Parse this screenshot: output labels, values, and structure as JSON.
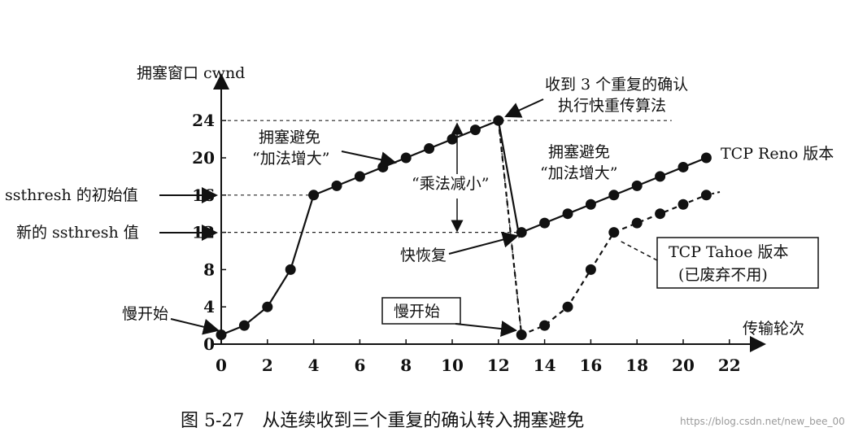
{
  "chart_data": {
    "type": "line",
    "ylabel": "拥塞窗口 cwnd",
    "xlabel": "传输轮次",
    "x_ticks": [
      0,
      2,
      4,
      6,
      8,
      10,
      12,
      14,
      16,
      18,
      20,
      22
    ],
    "y_ticks": [
      0,
      4,
      8,
      12,
      16,
      20,
      24
    ],
    "xlim": [
      0,
      22
    ],
    "ylim": [
      0,
      24
    ],
    "grid": false,
    "series": [
      {
        "name": "TCP Reno 版本",
        "style": "solid",
        "x": [
          0,
          1,
          2,
          3,
          4,
          5,
          6,
          7,
          8,
          9,
          10,
          11,
          12,
          12.9,
          13,
          14,
          15,
          16,
          17,
          18,
          19,
          20,
          21
        ],
        "y": [
          1,
          2,
          4,
          8,
          16,
          17,
          18,
          19,
          20,
          21,
          22,
          23,
          24,
          11.6,
          12,
          13,
          14,
          15,
          16,
          17,
          18,
          19,
          20
        ]
      },
      {
        "name": "TCP Tahoe 版本",
        "style": "dashed",
        "x": [
          12,
          13,
          14,
          15,
          16,
          17,
          18,
          19,
          20,
          21
        ],
        "y": [
          24,
          1,
          2,
          4,
          8,
          12,
          13,
          14,
          15,
          16
        ]
      }
    ],
    "annotations": {
      "slow_start_1": "慢开始",
      "slow_start_2": "慢开始",
      "ssthresh_initial": "ssthresh 的初始值",
      "ssthresh_new": "新的 ssthresh 值",
      "congestion_avoid_1a": "拥塞避免",
      "congestion_avoid_1b": "“加法增大”",
      "congestion_avoid_2a": "拥塞避免",
      "congestion_avoid_2b": "“加法增大”",
      "multiplicative": "“乘法减小”",
      "fast_recovery": "快恢复",
      "three_dup_a": "收到 3 个重复的确认",
      "three_dup_b": "执行快重传算法",
      "reno_label": "TCP Reno 版本",
      "tahoe_label_a": "TCP Tahoe 版本",
      "tahoe_label_b": "(已废弃不用)"
    },
    "caption": "图 5-27　从连续收到三个重复的确认转入拥塞避免"
  },
  "watermark": "https://blog.csdn.net/new_bee_00"
}
